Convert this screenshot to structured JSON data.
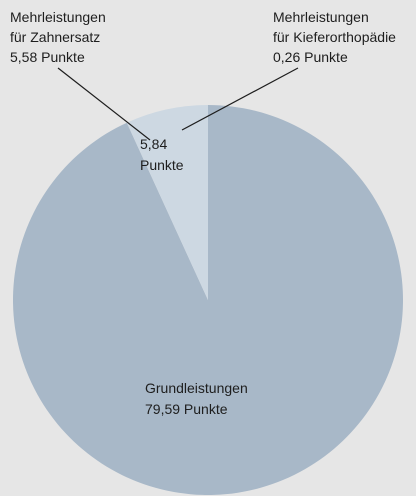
{
  "chart_data": {
    "type": "pie",
    "slices": [
      {
        "label": "Grundleistungen",
        "value": 79.59,
        "value_text": "79,59 Punkte",
        "color": "#a8b8c8"
      },
      {
        "label": "Mehrleistungen",
        "value": 5.84,
        "value_text": "5,84 Punkte",
        "color": "#cdd8e2"
      }
    ],
    "sub_parts": [
      {
        "label_line1": "Mehrleistungen",
        "label_line2": "für Zahnersatz",
        "value": 5.58,
        "value_text": "5,58 Punkte"
      },
      {
        "label_line1": "Mehrleistungen",
        "label_line2": "für Kieferorthopädie",
        "value": 0.26,
        "value_text": "0,26 Punkte"
      }
    ],
    "inner_label": {
      "line1": "5,84",
      "line2": "Punkte"
    }
  }
}
